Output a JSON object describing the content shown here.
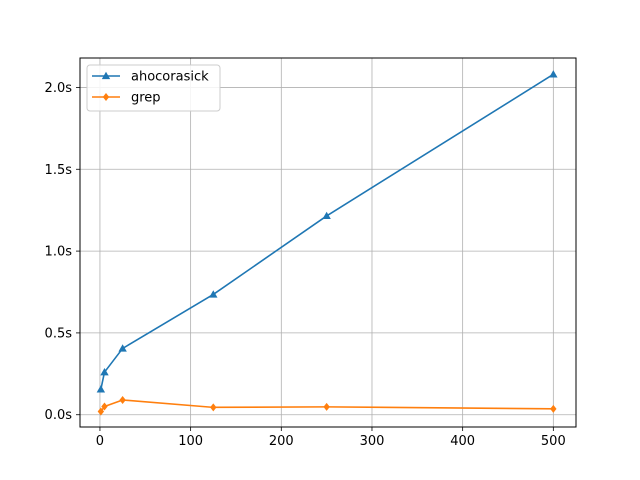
{
  "chart_data": {
    "type": "line",
    "title": "",
    "xlabel": "",
    "ylabel": "",
    "xlim": [
      -22,
      525
    ],
    "ylim": [
      -0.075,
      2.18
    ],
    "xticks": [
      0,
      100,
      200,
      300,
      400,
      500
    ],
    "xtick_labels": [
      "0",
      "100",
      "200",
      "300",
      "400",
      "500"
    ],
    "yticks": [
      0.0,
      0.5,
      1.0,
      1.5,
      2.0
    ],
    "ytick_labels": [
      "0.0s",
      "0.5s",
      "1.0s",
      "1.5s",
      "2.0s"
    ],
    "grid": true,
    "legend_position": "top-left",
    "series": [
      {
        "name": "ahocorasick",
        "color": "#1f77b4",
        "marker": "triangle-up",
        "x": [
          1,
          5,
          25,
          125,
          250,
          500
        ],
        "y": [
          0.155,
          0.26,
          0.405,
          0.735,
          1.215,
          2.08
        ]
      },
      {
        "name": "grep",
        "color": "#ff7f0e",
        "marker": "diamond",
        "x": [
          1,
          5,
          25,
          125,
          250,
          500
        ],
        "y": [
          0.02,
          0.05,
          0.09,
          0.045,
          0.048,
          0.036
        ]
      }
    ]
  }
}
